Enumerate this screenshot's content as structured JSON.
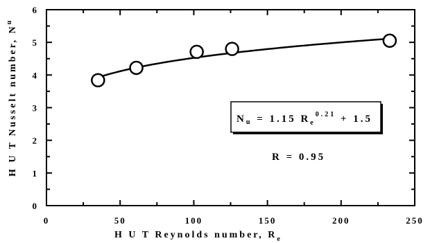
{
  "chart_data": {
    "type": "scatter",
    "title": "",
    "xlabel": "H U T  Reynolds number, R",
    "xlabel_sub": "e",
    "ylabel": "H U T  Nusselt number, N",
    "ylabel_sub": "u",
    "xlim": [
      0,
      250
    ],
    "ylim": [
      0,
      6
    ],
    "xticks": [
      0,
      50,
      100,
      150,
      200,
      250
    ],
    "yticks": [
      0,
      1,
      2,
      3,
      4,
      5,
      6
    ],
    "xtick_labels": [
      "0",
      "50",
      "100",
      "150",
      "200",
      "250"
    ],
    "ytick_labels": [
      "0",
      "1",
      "2",
      "3",
      "4",
      "5",
      "6"
    ],
    "grid": false,
    "points": [
      {
        "x": 35,
        "y": 3.84
      },
      {
        "x": 61,
        "y": 4.22
      },
      {
        "x": 102,
        "y": 4.71
      },
      {
        "x": 126,
        "y": 4.8
      },
      {
        "x": 233,
        "y": 5.05
      }
    ],
    "fit": {
      "coefficient": 1.15,
      "exponent": 0.21,
      "offset": 1.5,
      "x_range": [
        35,
        233
      ]
    },
    "annotations": {
      "eq_lhs": "N",
      "eq_lhs_sub": "u",
      "eq_mid": " = 1.15 R",
      "eq_mid_sub": "e",
      "eq_exp": "0.21",
      "eq_tail": " + 1.5",
      "r_value": "R  =  0.95"
    }
  }
}
